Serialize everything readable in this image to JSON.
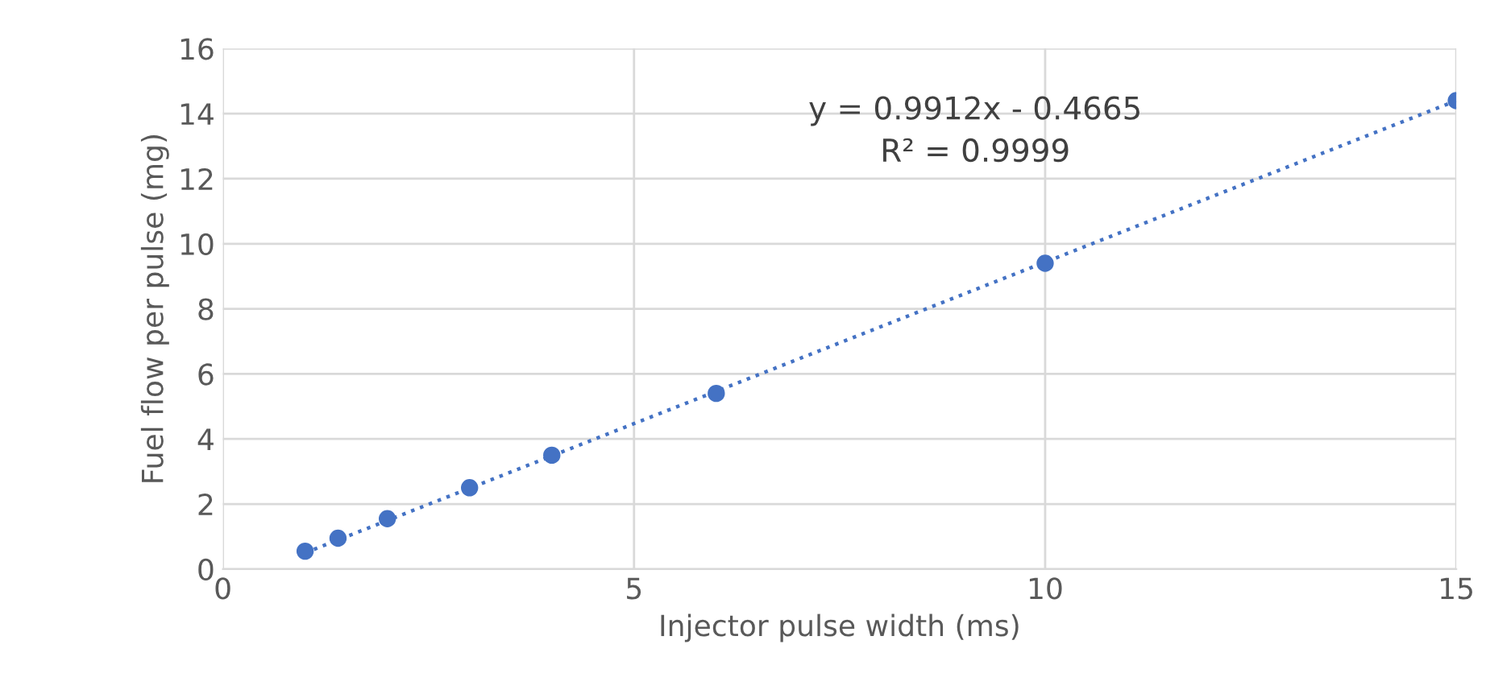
{
  "chart_data": {
    "type": "scatter",
    "xlabel": "Injector pulse width (ms)",
    "ylabel": "Fuel flow per pulse (mg)",
    "xlim": [
      0,
      15
    ],
    "xticks": [
      0,
      5,
      10,
      15
    ],
    "ylim": [
      0,
      16
    ],
    "yticks": [
      0,
      2,
      4,
      6,
      8,
      10,
      12,
      14,
      16
    ],
    "grid": true,
    "marker": "circle",
    "series": [
      {
        "color": "#4472c4",
        "x": [
          1,
          1.4,
          2,
          3,
          4,
          6,
          10,
          15
        ],
        "values": [
          0.55,
          0.95,
          1.55,
          2.5,
          3.5,
          5.4,
          9.4,
          14.4
        ]
      },
      {
        "type": "line",
        "color": "#4472c4",
        "line_style": "dotted",
        "marker": "none",
        "x": [
          1,
          15
        ],
        "values": [
          0.5,
          14.4
        ]
      }
    ],
    "annotations": [
      "y = 0.9912x - 0.4665\nR² = 0.9999"
    ]
  }
}
